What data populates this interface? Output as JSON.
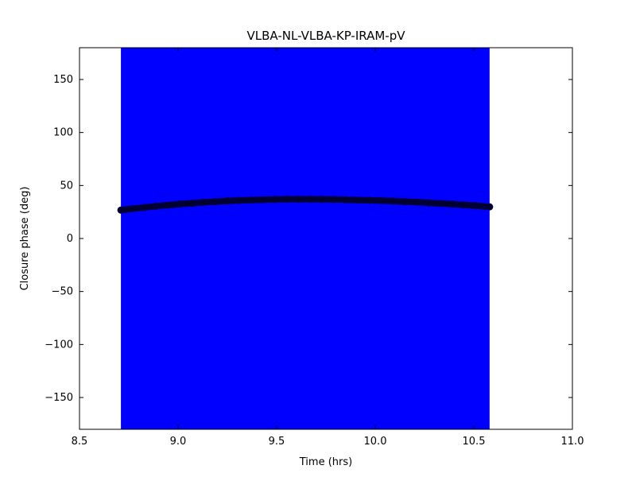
{
  "window": {
    "background": "#ffffff"
  },
  "chart_data": {
    "type": "scatter",
    "title": "VLBA-NL-VLBA-KP-IRAM-pV",
    "xlabel": "Time (hrs)",
    "ylabel": "Closure phase (deg)",
    "xlim": [
      8.5,
      11.0
    ],
    "ylim": [
      -180,
      180
    ],
    "xticks": [
      8.5,
      9.0,
      9.5,
      10.0,
      10.5,
      11.0
    ],
    "yticks": [
      -150,
      -100,
      -50,
      0,
      50,
      100,
      150
    ],
    "grid": false,
    "legend": null,
    "frame_color": "#000000",
    "error_band": {
      "x_start": 8.71,
      "x_end": 10.58,
      "y_min": -180,
      "y_max": 180,
      "color": "#0000ff",
      "note": "closure-phase error bars spanning the full y-range"
    },
    "series": [
      {
        "name": "closure phase",
        "marker": "circle",
        "marker_size": 4.5,
        "line_width": 8,
        "color": "#000033",
        "x": [
          8.71,
          8.77,
          8.83,
          8.89,
          8.95,
          9.01,
          9.07,
          9.13,
          9.19,
          9.25,
          9.31,
          9.37,
          9.43,
          9.49,
          9.55,
          9.61,
          9.67,
          9.73,
          9.79,
          9.85,
          9.91,
          9.97,
          10.03,
          10.09,
          10.15,
          10.21,
          10.27,
          10.33,
          10.39,
          10.45,
          10.51,
          10.58
        ],
        "y": [
          26.8,
          28.1,
          29.3,
          30.5,
          31.5,
          32.5,
          33.3,
          34.1,
          34.8,
          35.4,
          35.9,
          36.3,
          36.6,
          36.8,
          37.0,
          37.0,
          37.0,
          36.9,
          36.8,
          36.6,
          36.3,
          36.0,
          35.7,
          35.3,
          34.8,
          34.3,
          33.7,
          33.1,
          32.4,
          31.7,
          30.9,
          29.9
        ]
      }
    ]
  }
}
